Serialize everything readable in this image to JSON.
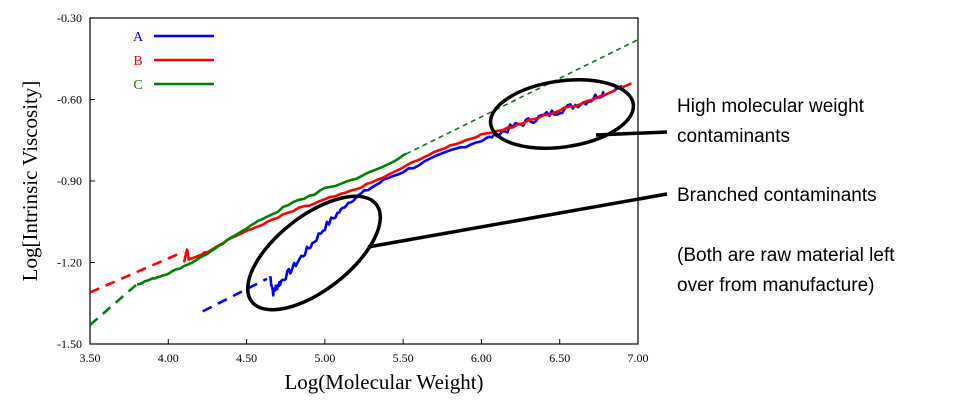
{
  "chart_data": {
    "type": "line",
    "xlabel": "Log(Molecular Weight)",
    "ylabel": "Log[Intrinsic Viscosity]",
    "xlim": [
      3.5,
      7.0
    ],
    "ylim": [
      -1.5,
      -0.3
    ],
    "x_ticks": [
      "3.50",
      "4.00",
      "4.50",
      "5.00",
      "5.50",
      "6.00",
      "6.50",
      "7.00"
    ],
    "y_ticks": [
      "-1.50",
      "-1.20",
      "-0.90",
      "-0.60",
      "-0.30"
    ],
    "grid": false,
    "legend_position": "top-left",
    "series": [
      {
        "name": "A",
        "color": "#0000ff",
        "solid": [
          [
            4.65,
            -1.25
          ],
          [
            4.67,
            -1.31
          ],
          [
            4.69,
            -1.29
          ],
          [
            4.72,
            -1.27
          ],
          [
            4.78,
            -1.23
          ],
          [
            4.85,
            -1.18
          ],
          [
            4.92,
            -1.13
          ],
          [
            5.0,
            -1.07
          ],
          [
            5.08,
            -1.02
          ],
          [
            5.15,
            -0.98
          ],
          [
            5.25,
            -0.94
          ],
          [
            5.4,
            -0.89
          ],
          [
            5.6,
            -0.84
          ],
          [
            5.8,
            -0.79
          ],
          [
            6.0,
            -0.75
          ],
          [
            6.1,
            -0.73
          ],
          [
            6.2,
            -0.7
          ],
          [
            6.3,
            -0.68
          ],
          [
            6.4,
            -0.66
          ],
          [
            6.5,
            -0.64
          ],
          [
            6.6,
            -0.62
          ],
          [
            6.7,
            -0.6
          ],
          [
            6.78,
            -0.57
          ]
        ],
        "fit": [
          [
            4.22,
            -1.38
          ],
          [
            4.63,
            -1.26
          ],
          [
            6.75,
            -0.595
          ],
          [
            6.9,
            -0.55
          ]
        ]
      },
      {
        "name": "B",
        "color": "#ff0000",
        "solid": [
          [
            4.1,
            -1.2
          ],
          [
            4.12,
            -1.15
          ],
          [
            4.13,
            -1.19
          ],
          [
            4.25,
            -1.16
          ],
          [
            4.4,
            -1.11
          ],
          [
            4.6,
            -1.06
          ],
          [
            4.8,
            -1.01
          ],
          [
            5.0,
            -0.97
          ],
          [
            5.2,
            -0.93
          ],
          [
            5.4,
            -0.88
          ],
          [
            5.6,
            -0.82
          ],
          [
            5.8,
            -0.77
          ],
          [
            6.0,
            -0.73
          ],
          [
            6.2,
            -0.7
          ],
          [
            6.4,
            -0.66
          ],
          [
            6.6,
            -0.62
          ],
          [
            6.8,
            -0.58
          ]
        ],
        "fit": [
          [
            3.5,
            -1.31
          ],
          [
            4.1,
            -1.16
          ],
          [
            6.8,
            -0.58
          ],
          [
            7.0,
            -0.53
          ]
        ]
      },
      {
        "name": "C",
        "color": "#008000",
        "solid": [
          [
            3.8,
            -1.28
          ],
          [
            3.9,
            -1.26
          ],
          [
            4.0,
            -1.24
          ],
          [
            4.15,
            -1.2
          ],
          [
            4.3,
            -1.15
          ],
          [
            4.45,
            -1.09
          ],
          [
            4.6,
            -1.04
          ],
          [
            4.8,
            -0.98
          ],
          [
            5.0,
            -0.93
          ],
          [
            5.2,
            -0.89
          ],
          [
            5.4,
            -0.84
          ],
          [
            5.52,
            -0.8
          ]
        ],
        "fit": [
          [
            3.5,
            -1.43
          ],
          [
            3.8,
            -1.28
          ],
          [
            5.52,
            -0.8
          ],
          [
            7.0,
            -0.38
          ]
        ]
      }
    ],
    "annotations": [
      {
        "text": "High molecular weight contaminants"
      },
      {
        "text": "Branched contaminants"
      },
      {
        "text": "(Both are raw material left over from manufacture)"
      }
    ]
  },
  "annotation_lines": {
    "high_1": "High molecular weight",
    "high_2": "contaminants",
    "branched": "Branched contaminants",
    "note_1": "(Both are raw material left",
    "note_2": "over from manufacture)"
  }
}
